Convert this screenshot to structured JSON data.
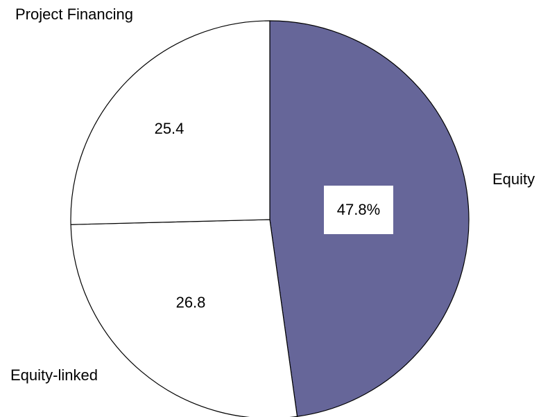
{
  "chart_data": {
    "type": "pie",
    "categories": [
      "Equity",
      "Equity-linked",
      "Project Financing"
    ],
    "values": [
      47.8,
      26.8,
      25.4
    ],
    "value_labels": [
      "47.8%",
      "26.8",
      "25.4"
    ],
    "colors": [
      "#666699",
      "#ffffff",
      "#ffffff"
    ]
  }
}
